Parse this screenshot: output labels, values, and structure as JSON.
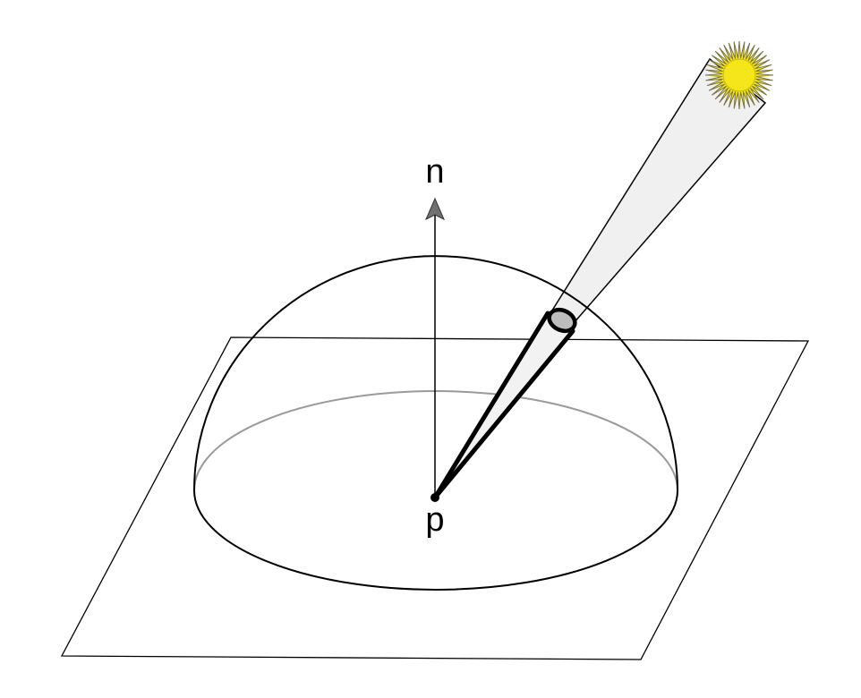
{
  "diagram": {
    "labels": {
      "normal": "n",
      "point": "p"
    },
    "elements": {
      "surface_plane": "plane",
      "hemisphere": "hemisphere",
      "normal_vector": "arrow",
      "light_source": "sun-icon",
      "light_beam": "beam",
      "solid_angle_cone": "cone"
    },
    "colors": {
      "stroke": "#000000",
      "hemisphere_back_rim": "#9a9a9a",
      "beam_fill": "#f0f0f0",
      "cone_cap_fill": "#bdbdbd",
      "arrow_head": "#707070",
      "sun_fill": "#f5e61c",
      "sun_rays": "#7a7440"
    }
  }
}
